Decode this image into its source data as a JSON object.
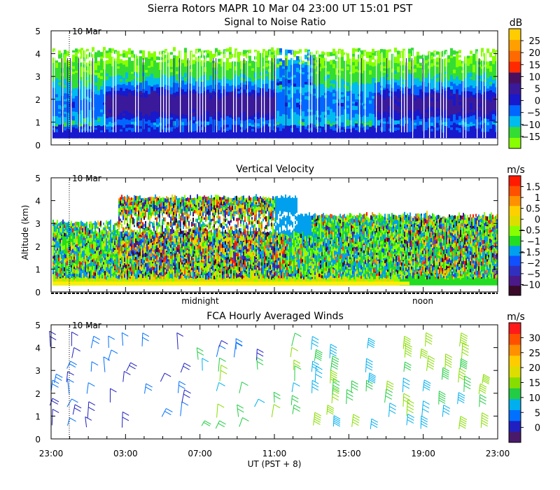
{
  "header": {
    "title": "Sierra Rotors   MAPR 10 Mar 04   23:00 UT   15:01   PST"
  },
  "axes": {
    "ylabel": "Altitude (km)",
    "xlabel": "UT  (PST + 8)",
    "y_ticks": [
      "0",
      "1",
      "2",
      "3",
      "4",
      "5"
    ],
    "x_ticks": [
      "23:00",
      "03:00",
      "07:00",
      "11:00",
      "15:00",
      "19:00",
      "23:00"
    ],
    "day_marker": "10 Mar",
    "midnight_label": "midnight",
    "noon_label": "noon"
  },
  "chart_data": [
    {
      "type": "heatmap",
      "title": "Signal to Noise Ratio",
      "colorbar_unit": "dB",
      "colorbar_ticks": [
        "25",
        "20",
        "15",
        "10",
        "5",
        "0",
        "−5",
        "−10",
        "−15"
      ],
      "colors": [
        "#88ff00",
        "#33dd33",
        "#00bbee",
        "#0066ff",
        "#1818cc",
        "#3a1a9a",
        "#4a1060",
        "#ff2a00",
        "#ff6a00",
        "#ffa000",
        "#ffcc00"
      ],
      "xlim": [
        "23:00",
        "23:00"
      ],
      "ylim": [
        0,
        5
      ]
    },
    {
      "type": "heatmap",
      "title": "Vertical Velocity",
      "colorbar_unit": "m/s",
      "colorbar_ticks": [
        "1.5",
        "1",
        "0.5",
        "0",
        "−0.5",
        "−1",
        "−1.5",
        "−2",
        "−5",
        "−10"
      ],
      "colors": [
        "#3a0a2a",
        "#4a1a8a",
        "#3030c0",
        "#1050ff",
        "#00a0ee",
        "#22dd22",
        "#88ff00",
        "#dddd00",
        "#ffd000",
        "#ff9000",
        "#ff5000",
        "#ff1a00"
      ],
      "xlim": [
        "23:00",
        "23:00"
      ],
      "ylim": [
        0,
        5
      ]
    },
    {
      "type": "scatter",
      "title": "FCA Hourly Averaged Winds",
      "colorbar_unit": "m/s",
      "colorbar_ticks": [
        "30",
        "25",
        "20",
        "15",
        "10",
        "5",
        "0"
      ],
      "colors": [
        "#4a1a6a",
        "#2020c0",
        "#0070ff",
        "#00b0ee",
        "#22cc44",
        "#88dd00",
        "#dddd00",
        "#ffcc00",
        "#ff9000",
        "#ff5000",
        "#ff1a1a"
      ],
      "xlim": [
        "23:00",
        "23:00"
      ],
      "ylim": [
        0,
        5
      ],
      "hours_ut": [
        0,
        1,
        2,
        3,
        4,
        5,
        6,
        7,
        8,
        9,
        10,
        11,
        12,
        13,
        14,
        15,
        16,
        17,
        18,
        19,
        20,
        21,
        22,
        23
      ],
      "levels_km": [
        0.5,
        1.0,
        1.5,
        2.0,
        2.5,
        3.0,
        3.5,
        4.0
      ]
    }
  ]
}
